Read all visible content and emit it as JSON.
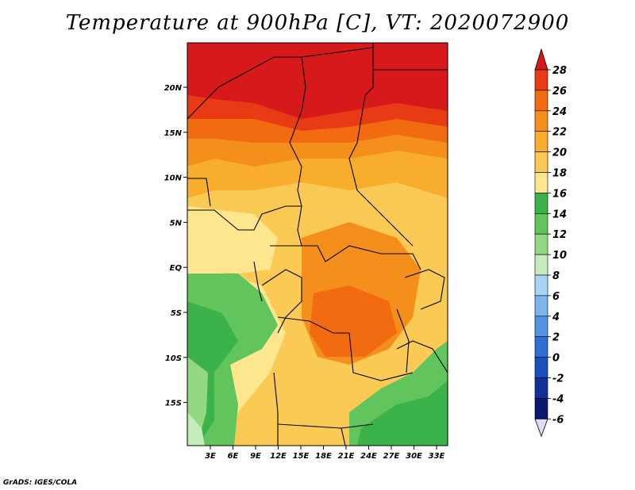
{
  "title": "Temperature at 900hPa [C], VT: 2020072900",
  "credit": "GrADS: IGES/COLA",
  "map": {
    "lon_labels": [
      "3E",
      "6E",
      "9E",
      "12E",
      "15E",
      "18E",
      "21E",
      "24E",
      "27E",
      "30E",
      "33E"
    ],
    "lat_labels": [
      "20N",
      "15N",
      "10N",
      "5N",
      "EQ",
      "5S",
      "10S",
      "15S"
    ]
  },
  "legend": {
    "levels": [
      "28",
      "26",
      "24",
      "22",
      "20",
      "18",
      "16",
      "14",
      "12",
      "10",
      "8",
      "6",
      "4",
      "2",
      "0",
      "-2",
      "-4",
      "-6"
    ],
    "colors": [
      "#d7191c",
      "#e83a14",
      "#f26b10",
      "#f58f1c",
      "#f8ad2c",
      "#fbca55",
      "#fde68e",
      "#3bb34a",
      "#62c45c",
      "#93d883",
      "#c6ecbb",
      "#a8d4f5",
      "#7cb5ee",
      "#5293e2",
      "#2d6fd6",
      "#1a4fc0",
      "#12309a",
      "#0a1a70",
      "#dcdcf4"
    ]
  }
}
